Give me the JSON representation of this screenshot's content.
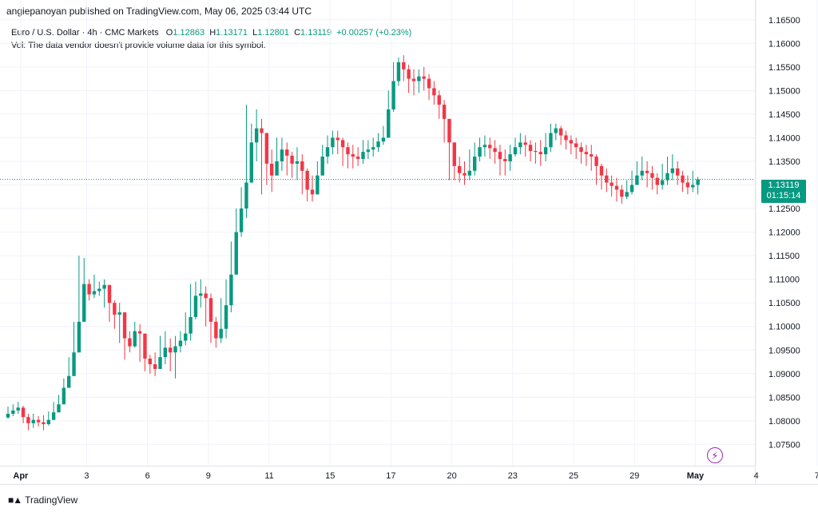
{
  "header": {
    "publisher": "angiepanoyan published on TradingView.com, May 06, 2025 03:44 UTC"
  },
  "legend": {
    "symbol": "Euro / U.S. Dollar · 4h · CMC Markets",
    "o_label": "O",
    "o": "1.12863",
    "h_label": "H",
    "h": "1.13171",
    "l_label": "L",
    "l": "1.12801",
    "c_label": "C",
    "c": "1.13119",
    "change": "+0.00257 (+0.23%)",
    "volume_note": "Vol: The data vendor doesn't provide volume data for this symbol."
  },
  "price_badge": {
    "price": "1.13119",
    "countdown": "01:15:14"
  },
  "footer": {
    "brand": "TradingView"
  },
  "colors": {
    "up": "#089981",
    "down": "#f23645",
    "grid": "#f0f3fa",
    "text": "#131722"
  },
  "chart_data": {
    "type": "candlestick",
    "ylim": [
      1.0705,
      1.1675
    ],
    "y_ticks": [
      "1.16500",
      "1.16000",
      "1.15500",
      "1.15000",
      "1.14500",
      "1.14000",
      "1.13500",
      "1.13000",
      "1.12500",
      "1.12000",
      "1.11500",
      "1.11000",
      "1.10500",
      "1.10000",
      "1.09500",
      "1.09000",
      "1.08500",
      "1.08000",
      "1.07500"
    ],
    "x_tick_labels": [
      "Apr",
      "3",
      "6",
      "9",
      "11",
      "15",
      "17",
      "20",
      "23",
      "25",
      "29",
      "May",
      "4",
      "7"
    ],
    "x_tick_index": [
      2.5,
      15.5,
      27.5,
      39.5,
      51.5,
      63.5,
      75.5,
      87.5,
      99.5,
      111.5,
      123.5,
      135.5,
      147.5,
      159.5
    ],
    "last_price": 1.13119,
    "close": [
      1.0815,
      1.0822,
      1.0828,
      1.0808,
      1.0795,
      1.0802,
      1.0797,
      1.0793,
      1.0802,
      1.0818,
      1.0835,
      1.087,
      1.0895,
      1.0945,
      1.101,
      1.109,
      1.1068,
      1.1075,
      1.108,
      1.1088,
      1.105,
      1.1025,
      1.103,
      1.0975,
      1.0958,
      1.099,
      1.0985,
      1.0932,
      1.092,
      1.091,
      1.0935,
      1.0955,
      1.0945,
      1.0958,
      1.097,
      1.0985,
      1.102,
      1.1065,
      1.107,
      1.106,
      1.101,
      1.0975,
      1.0995,
      1.1045,
      1.111,
      1.12,
      1.125,
      1.1305,
      1.139,
      1.142,
      1.141,
      1.1345,
      1.132,
      1.135,
      1.1375,
      1.1362,
      1.1345,
      1.135,
      1.133,
      1.129,
      1.128,
      1.132,
      1.136,
      1.138,
      1.14,
      1.1395,
      1.138,
      1.1365,
      1.136,
      1.1355,
      1.137,
      1.1375,
      1.138,
      1.1392,
      1.14,
      1.146,
      1.152,
      1.156,
      1.1545,
      1.1525,
      1.152,
      1.153,
      1.1525,
      1.1505,
      1.149,
      1.147,
      1.144,
      1.139,
      1.134,
      1.1325,
      1.132,
      1.133,
      1.136,
      1.138,
      1.1385,
      1.1378,
      1.137,
      1.1355,
      1.135,
      1.1365,
      1.138,
      1.139,
      1.1385,
      1.1372,
      1.137,
      1.1365,
      1.138,
      1.141,
      1.142,
      1.1405,
      1.1395,
      1.1388,
      1.138,
      1.137,
      1.1365,
      1.136,
      1.134,
      1.132,
      1.1305,
      1.1298,
      1.129,
      1.1275,
      1.1285,
      1.13,
      1.132,
      1.133,
      1.1325,
      1.1315,
      1.13,
      1.131,
      1.1325,
      1.1335,
      1.132,
      1.1305,
      1.1295,
      1.13,
      1.1312
    ],
    "high": [
      1.083,
      1.0835,
      1.084,
      1.0832,
      1.0815,
      1.0815,
      1.081,
      1.0812,
      1.082,
      1.084,
      1.0855,
      1.089,
      1.0935,
      1.101,
      1.115,
      1.1145,
      1.11,
      1.111,
      1.1095,
      1.11,
      1.108,
      1.1055,
      1.105,
      1.102,
      1.099,
      1.101,
      1.1005,
      1.0975,
      1.094,
      1.0945,
      1.098,
      1.099,
      1.0975,
      1.098,
      1.099,
      1.103,
      1.109,
      1.1095,
      1.11,
      1.1085,
      1.107,
      1.102,
      1.106,
      1.11,
      1.118,
      1.125,
      1.1295,
      1.147,
      1.143,
      1.146,
      1.144,
      1.14,
      1.1375,
      1.14,
      1.14,
      1.139,
      1.137,
      1.138,
      1.1365,
      1.1335,
      1.132,
      1.135,
      1.1385,
      1.1405,
      1.1415,
      1.1415,
      1.14,
      1.139,
      1.1385,
      1.138,
      1.1395,
      1.1395,
      1.14,
      1.141,
      1.1425,
      1.15,
      1.156,
      1.157,
      1.1575,
      1.1555,
      1.1545,
      1.1545,
      1.155,
      1.1535,
      1.152,
      1.15,
      1.148,
      1.144,
      1.139,
      1.136,
      1.135,
      1.1375,
      1.139,
      1.14,
      1.1405,
      1.14,
      1.1395,
      1.1385,
      1.1375,
      1.1385,
      1.14,
      1.141,
      1.1405,
      1.1395,
      1.139,
      1.1395,
      1.141,
      1.143,
      1.143,
      1.1425,
      1.1415,
      1.1405,
      1.14,
      1.139,
      1.1385,
      1.1385,
      1.1365,
      1.1345,
      1.1335,
      1.132,
      1.1315,
      1.13,
      1.131,
      1.133,
      1.135,
      1.136,
      1.135,
      1.134,
      1.1325,
      1.1345,
      1.136,
      1.1365,
      1.135,
      1.133,
      1.132,
      1.133,
      1.1317
    ],
    "low": [
      1.0805,
      1.081,
      1.0815,
      1.0795,
      1.078,
      1.0785,
      1.0788,
      1.078,
      1.079,
      1.0805,
      1.0825,
      1.0845,
      1.0885,
      1.0935,
      1.099,
      1.107,
      1.1055,
      1.106,
      1.1065,
      1.104,
      1.101,
      1.0995,
      1.0965,
      1.093,
      1.0945,
      1.0955,
      1.0925,
      1.0905,
      1.09,
      1.0895,
      1.091,
      1.092,
      1.0905,
      1.089,
      1.0945,
      1.096,
      1.097,
      1.1015,
      1.104,
      1.1,
      1.0965,
      1.0955,
      1.0965,
      1.0975,
      1.103,
      1.116,
      1.119,
      1.123,
      1.132,
      1.135,
      1.128,
      1.13,
      1.1285,
      1.132,
      1.133,
      1.132,
      1.1315,
      1.131,
      1.128,
      1.1265,
      1.1265,
      1.1285,
      1.132,
      1.1345,
      1.1365,
      1.1365,
      1.134,
      1.1335,
      1.1335,
      1.134,
      1.1345,
      1.1355,
      1.136,
      1.137,
      1.1385,
      1.14,
      1.1455,
      1.151,
      1.152,
      1.1495,
      1.149,
      1.1495,
      1.15,
      1.148,
      1.147,
      1.144,
      1.139,
      1.131,
      1.131,
      1.1305,
      1.13,
      1.131,
      1.132,
      1.135,
      1.136,
      1.1355,
      1.1345,
      1.132,
      1.132,
      1.133,
      1.136,
      1.1365,
      1.136,
      1.135,
      1.1345,
      1.134,
      1.135,
      1.137,
      1.1395,
      1.1385,
      1.1375,
      1.1365,
      1.1355,
      1.1345,
      1.134,
      1.133,
      1.13,
      1.129,
      1.1285,
      1.1275,
      1.1265,
      1.126,
      1.127,
      1.128,
      1.13,
      1.131,
      1.1295,
      1.129,
      1.128,
      1.129,
      1.13,
      1.131,
      1.13,
      1.1285,
      1.128,
      1.1285,
      1.128
    ]
  }
}
